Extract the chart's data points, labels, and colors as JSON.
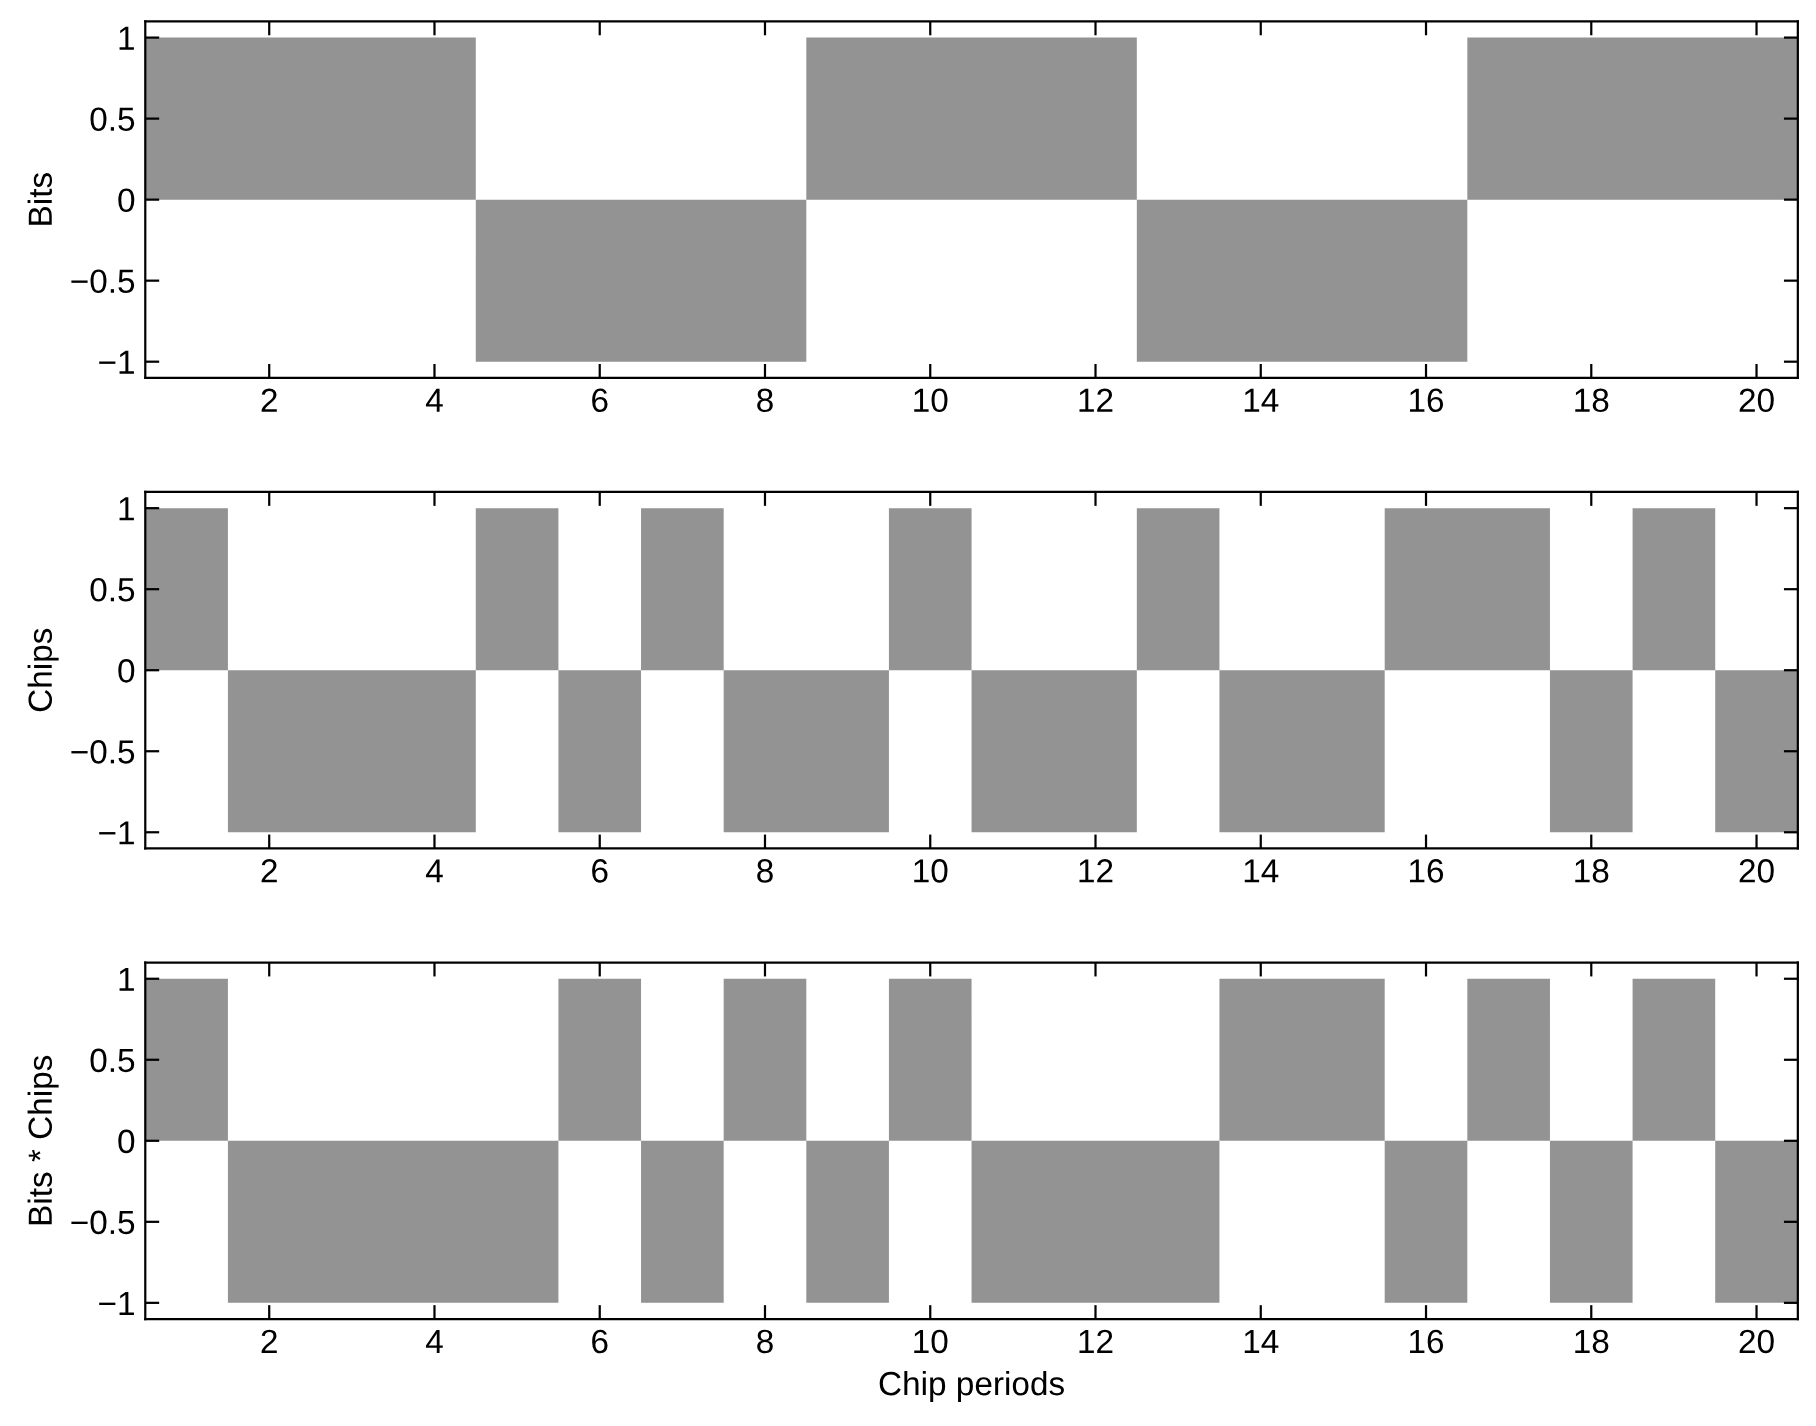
{
  "chart_data": [
    {
      "type": "histogram",
      "ylabel": "Bits",
      "bins": [
        0.5,
        1.5,
        2.5,
        3.5,
        4.5,
        5.5,
        6.5,
        7.5,
        8.5,
        9.5,
        10.5,
        11.5,
        12.5,
        13.5,
        14.5,
        15.5,
        16.5,
        17.5,
        18.5,
        19.5,
        20.5
      ],
      "values": [
        1,
        1,
        1,
        1,
        -1,
        -1,
        -1,
        -1,
        1,
        1,
        1,
        1,
        -1,
        -1,
        -1,
        -1,
        1,
        1,
        1,
        1
      ],
      "color": "#939393",
      "xlim": [
        0.5,
        20.5
      ],
      "xticks": [
        2,
        4,
        6,
        8,
        10,
        12,
        14,
        16,
        18,
        20
      ],
      "ylim": [
        -1.1,
        1.1
      ],
      "yticks": [
        -1,
        -0.5,
        0,
        0.5,
        1
      ]
    },
    {
      "type": "histogram",
      "ylabel": "Chips",
      "bins": [
        0.5,
        1.5,
        2.5,
        3.5,
        4.5,
        5.5,
        6.5,
        7.5,
        8.5,
        9.5,
        10.5,
        11.5,
        12.5,
        13.5,
        14.5,
        15.5,
        16.5,
        17.5,
        18.5,
        19.5,
        20.5
      ],
      "values": [
        1,
        -1,
        -1,
        -1,
        1,
        -1,
        1,
        -1,
        -1,
        1,
        -1,
        -1,
        1,
        -1,
        -1,
        1,
        1,
        -1,
        1,
        -1
      ],
      "color": "#939393",
      "xlim": [
        0.5,
        20.5
      ],
      "xticks": [
        2,
        4,
        6,
        8,
        10,
        12,
        14,
        16,
        18,
        20
      ],
      "ylim": [
        -1.1,
        1.1
      ],
      "yticks": [
        -1,
        -0.5,
        0,
        0.5,
        1
      ]
    },
    {
      "type": "histogram",
      "ylabel": "Bits * Chips",
      "xlabel": "Chip periods",
      "bins": [
        0.5,
        1.5,
        2.5,
        3.5,
        4.5,
        5.5,
        6.5,
        7.5,
        8.5,
        9.5,
        10.5,
        11.5,
        12.5,
        13.5,
        14.5,
        15.5,
        16.5,
        17.5,
        18.5,
        19.5,
        20.5
      ],
      "values": [
        1,
        -1,
        -1,
        -1,
        -1,
        1,
        -1,
        1,
        -1,
        1,
        -1,
        -1,
        -1,
        1,
        1,
        -1,
        1,
        -1,
        1,
        -1
      ],
      "color": "#939393",
      "xlim": [
        0.5,
        20.5
      ],
      "xticks": [
        2,
        4,
        6,
        8,
        10,
        12,
        14,
        16,
        18,
        20
      ],
      "ylim": [
        -1.1,
        1.1
      ],
      "yticks": [
        -1,
        -0.5,
        0,
        0.5,
        1
      ]
    }
  ]
}
